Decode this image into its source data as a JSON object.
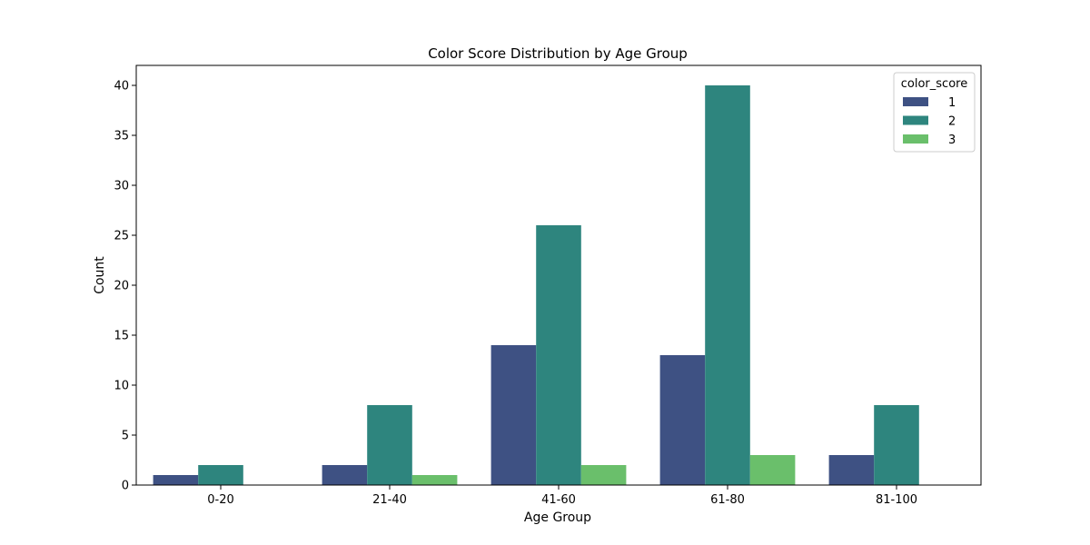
{
  "chart_data": {
    "type": "bar",
    "title": "Color Score Distribution by Age Group",
    "xlabel": "Age Group",
    "ylabel": "Count",
    "categories": [
      "0-20",
      "21-40",
      "41-60",
      "61-80",
      "81-100"
    ],
    "series": [
      {
        "name": "1",
        "values": [
          1,
          2,
          14,
          13,
          3
        ],
        "color": "#3e5183"
      },
      {
        "name": "2",
        "values": [
          2,
          8,
          26,
          40,
          8
        ],
        "color": "#2e857e"
      },
      {
        "name": "3",
        "values": [
          0,
          1,
          2,
          3,
          0
        ],
        "color": "#6abf6b"
      }
    ],
    "ylim": [
      0,
      42
    ],
    "yticks": [
      0,
      5,
      10,
      15,
      20,
      25,
      30,
      35,
      40
    ],
    "grid": false,
    "legend": {
      "title": "color_score",
      "placement": "top-right"
    }
  }
}
